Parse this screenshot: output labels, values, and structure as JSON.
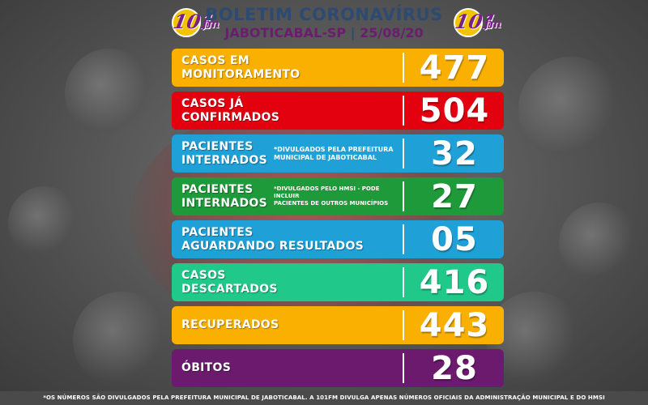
{
  "header": {
    "title": "BOLETIM CORONAVÍRUS",
    "city": "JABOTICABAL-SP",
    "separator": "|",
    "date": "25/08/20",
    "logo_number": "101",
    "logo_suffix": "fm"
  },
  "rows": [
    {
      "label_lines": [
        "CASOS EM",
        "MONITORAMENTO"
      ],
      "note_lines": [],
      "value": "477",
      "color": "#f9b000"
    },
    {
      "label_lines": [
        "CASOS JÁ",
        "CONFIRMADOS"
      ],
      "note_lines": [],
      "value": "504",
      "color": "#e3000f"
    },
    {
      "label_lines": [
        "PACIENTES",
        "INTERNADOS"
      ],
      "note_lines": [
        "*DIVULGADOS PELA PREFEITURA",
        "MUNICIPAL DE JABOTICABAL"
      ],
      "value": "32",
      "color": "#1fa1d8"
    },
    {
      "label_lines": [
        "PACIENTES",
        "INTERNADOS"
      ],
      "note_lines": [
        "*DIVULGADOS PELO HMSI - PODE INCLUIR",
        "PACIENTES DE OUTROS MUNICÍPIOS"
      ],
      "value": "27",
      "color": "#1f9a3a"
    },
    {
      "label_lines": [
        "PACIENTES",
        "AGUARDANDO RESULTADOS"
      ],
      "note_lines": [],
      "value": "05",
      "color": "#1fa1d8"
    },
    {
      "label_lines": [
        "CASOS",
        "DESCARTADOS"
      ],
      "note_lines": [],
      "value": "416",
      "color": "#20c98a"
    },
    {
      "label_lines": [
        "RECUPERADOS"
      ],
      "note_lines": [],
      "value": "443",
      "color": "#f9b000"
    },
    {
      "label_lines": [
        "ÓBITOS"
      ],
      "note_lines": [],
      "value": "28",
      "color": "#6b1a6e"
    }
  ],
  "footer": {
    "text": "*OS NÚMEROS SÃO DIVULGADOS PELA PREFEITURA MUNICIPAL DE JABOTICABAL. A 101FM DIVULGA APENAS NÚMEROS OFICIAIS DA ADMINISTRAÇÃO MUNICIPAL E DO HMSI"
  }
}
